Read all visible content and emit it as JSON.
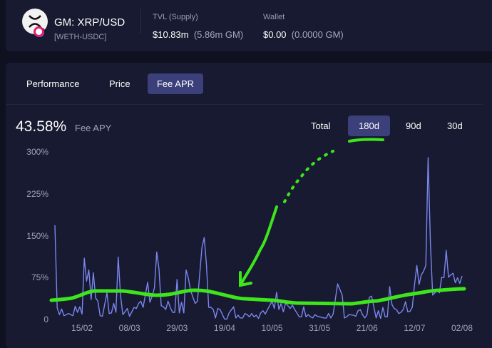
{
  "header": {
    "title": "GM: XRP/USD",
    "pair": "[WETH-USDC]",
    "tvl_label": "TVL (Supply)",
    "tvl_value": "$10.83m",
    "tvl_gm": "(5.86m GM)",
    "wallet_label": "Wallet",
    "wallet_value": "$0.00",
    "wallet_gm": "(0.0000 GM)"
  },
  "tabs": [
    "Performance",
    "Price",
    "Fee APR"
  ],
  "active_tab": "Fee APR",
  "apy": {
    "value": "43.58%",
    "label": "Fee APY"
  },
  "ranges": [
    "Total",
    "180d",
    "90d",
    "30d"
  ],
  "active_range": "180d",
  "colors": {
    "line": "#7b86f0",
    "annotation": "#3ee51c",
    "active": "#3b3f7a"
  },
  "chart_data": {
    "type": "line",
    "title": "Fee APR",
    "ylabel": "",
    "xlabel": "",
    "ylim": [
      0,
      300
    ],
    "ytick_labels": [
      "0",
      "75%",
      "150%",
      "225%",
      "300%"
    ],
    "yticks": [
      0,
      75,
      150,
      225,
      300
    ],
    "xtick_labels": [
      "15/02",
      "08/03",
      "29/03",
      "19/04",
      "10/05",
      "31/05",
      "21/06",
      "12/07",
      "02/08"
    ],
    "xticks": [
      12,
      33,
      54,
      75,
      96,
      117,
      138,
      159,
      180
    ],
    "xlim": [
      0,
      180
    ],
    "points": [
      [
        0,
        170
      ],
      [
        1,
        22
      ],
      [
        2,
        10
      ],
      [
        3,
        20
      ],
      [
        4,
        8
      ],
      [
        5,
        10
      ],
      [
        6,
        12
      ],
      [
        7,
        10
      ],
      [
        8,
        8
      ],
      [
        9,
        25
      ],
      [
        10,
        14
      ],
      [
        11,
        24
      ],
      [
        12,
        11
      ],
      [
        13,
        111
      ],
      [
        14,
        70
      ],
      [
        15,
        90
      ],
      [
        16,
        37
      ],
      [
        17,
        85
      ],
      [
        18,
        40
      ],
      [
        19,
        34
      ],
      [
        20,
        8
      ],
      [
        21,
        7
      ],
      [
        22,
        28
      ],
      [
        23,
        49
      ],
      [
        24,
        12
      ],
      [
        25,
        13
      ],
      [
        26,
        30
      ],
      [
        27,
        14
      ],
      [
        28,
        113
      ],
      [
        29,
        45
      ],
      [
        30,
        10
      ],
      [
        31,
        15
      ],
      [
        32,
        21
      ],
      [
        33,
        7
      ],
      [
        35,
        23
      ],
      [
        36,
        21
      ],
      [
        37,
        30
      ],
      [
        38,
        34
      ],
      [
        39,
        23
      ],
      [
        41,
        68
      ],
      [
        42,
        32
      ],
      [
        43,
        43
      ],
      [
        44,
        58
      ],
      [
        45,
        122
      ],
      [
        46,
        92
      ],
      [
        47,
        26
      ],
      [
        48,
        24
      ],
      [
        49,
        19
      ],
      [
        50,
        34
      ],
      [
        51,
        23
      ],
      [
        52,
        14
      ],
      [
        53,
        14
      ],
      [
        54,
        73
      ],
      [
        55,
        13
      ],
      [
        56,
        32
      ],
      [
        57,
        13
      ],
      [
        58,
        90
      ],
      [
        59,
        75
      ],
      [
        60,
        53
      ],
      [
        62,
        30
      ],
      [
        63,
        34
      ],
      [
        65,
        130
      ],
      [
        66,
        148
      ],
      [
        67,
        100
      ],
      [
        68,
        23
      ],
      [
        69,
        23
      ],
      [
        70,
        19
      ],
      [
        71,
        4
      ],
      [
        72,
        21
      ],
      [
        73,
        19
      ],
      [
        74,
        11
      ],
      [
        75,
        2
      ],
      [
        76,
        2
      ],
      [
        77,
        13
      ],
      [
        79,
        24
      ],
      [
        80,
        4
      ],
      [
        81,
        9
      ],
      [
        82,
        4
      ],
      [
        83,
        4
      ],
      [
        84,
        12
      ],
      [
        85,
        10
      ],
      [
        86,
        6
      ],
      [
        87,
        12
      ],
      [
        88,
        6
      ],
      [
        89,
        9
      ],
      [
        90,
        3
      ],
      [
        91,
        13
      ],
      [
        92,
        17
      ],
      [
        93,
        11
      ],
      [
        94,
        19
      ],
      [
        96,
        34
      ],
      [
        97,
        21
      ],
      [
        98,
        50
      ],
      [
        99,
        19
      ],
      [
        100,
        30
      ],
      [
        101,
        15
      ],
      [
        102,
        31
      ],
      [
        103,
        26
      ],
      [
        104,
        21
      ],
      [
        105,
        27
      ],
      [
        106,
        19
      ],
      [
        107,
        13
      ],
      [
        108,
        6
      ],
      [
        109,
        6
      ],
      [
        110,
        24
      ],
      [
        111,
        6
      ],
      [
        112,
        10
      ],
      [
        113,
        6
      ],
      [
        114,
        4
      ],
      [
        115,
        10
      ],
      [
        116,
        7
      ],
      [
        117,
        6
      ],
      [
        119,
        4
      ],
      [
        120,
        4
      ],
      [
        121,
        12
      ],
      [
        122,
        4
      ],
      [
        123,
        11
      ],
      [
        125,
        65
      ],
      [
        127,
        45
      ],
      [
        128,
        4
      ],
      [
        129,
        6
      ],
      [
        130,
        10
      ],
      [
        132,
        9
      ],
      [
        133,
        7
      ],
      [
        134,
        17
      ],
      [
        135,
        19
      ],
      [
        136,
        10
      ],
      [
        137,
        4
      ],
      [
        138,
        10
      ],
      [
        139,
        41
      ],
      [
        140,
        43
      ],
      [
        142,
        4
      ],
      [
        143,
        17
      ],
      [
        144,
        3
      ],
      [
        145,
        23
      ],
      [
        146,
        6
      ],
      [
        147,
        6
      ],
      [
        148,
        60
      ],
      [
        149,
        28
      ],
      [
        150,
        21
      ],
      [
        151,
        19
      ],
      [
        152,
        12
      ],
      [
        153,
        14
      ],
      [
        154,
        19
      ],
      [
        155,
        33
      ],
      [
        156,
        15
      ],
      [
        157,
        16
      ],
      [
        158,
        23
      ],
      [
        159,
        64
      ],
      [
        160,
        98
      ],
      [
        161,
        64
      ],
      [
        162,
        81
      ],
      [
        163,
        88
      ],
      [
        164,
        98
      ],
      [
        165,
        291
      ],
      [
        166,
        139
      ],
      [
        167,
        45
      ],
      [
        168,
        49
      ],
      [
        169,
        53
      ],
      [
        170,
        49
      ],
      [
        171,
        77
      ],
      [
        172,
        76
      ],
      [
        173,
        125
      ],
      [
        174,
        77
      ],
      [
        175,
        81
      ],
      [
        176,
        84
      ],
      [
        177,
        67
      ],
      [
        178,
        76
      ],
      [
        179,
        66
      ],
      [
        180,
        79
      ]
    ]
  }
}
